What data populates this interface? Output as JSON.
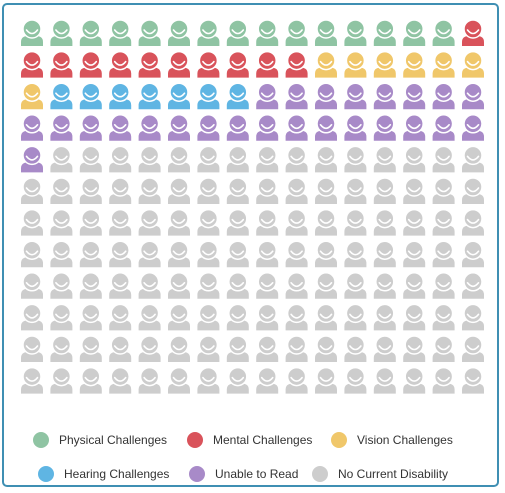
{
  "chart_data": {
    "type": "pictogram",
    "total_icons": 192,
    "columns": 16,
    "fill_order": "row-major, top-left to bottom-right",
    "series": [
      {
        "name": "Physical Challenges",
        "count": 15,
        "color": "#8fc4a3"
      },
      {
        "name": "Mental Challenges",
        "count": 11,
        "color": "#d9535b"
      },
      {
        "name": "Vision Challenges",
        "count": 7,
        "color": "#f0c76a"
      },
      {
        "name": "Hearing Challenges",
        "count": 7,
        "color": "#5fb5e3"
      },
      {
        "name": "Unable to Read",
        "count": 25,
        "color": "#a88ac8"
      },
      {
        "name": "No Current Disability",
        "count": 127,
        "color": "#cdcdcd"
      }
    ],
    "legend_position": "bottom"
  },
  "legend": {
    "items": [
      {
        "label": "Physical Challenges",
        "color": "#8fc4a3"
      },
      {
        "label": "Mental Challenges",
        "color": "#d9535b"
      },
      {
        "label": "Vision Challenges",
        "color": "#f0c76a"
      },
      {
        "label": "Hearing Challenges",
        "color": "#5fb5e3"
      },
      {
        "label": "Unable to Read",
        "color": "#a88ac8"
      },
      {
        "label": "No Current Disability",
        "color": "#cdcdcd"
      }
    ]
  },
  "colors": {
    "frame_border": "#3f8fb3",
    "icon_face": "#ffffff"
  }
}
